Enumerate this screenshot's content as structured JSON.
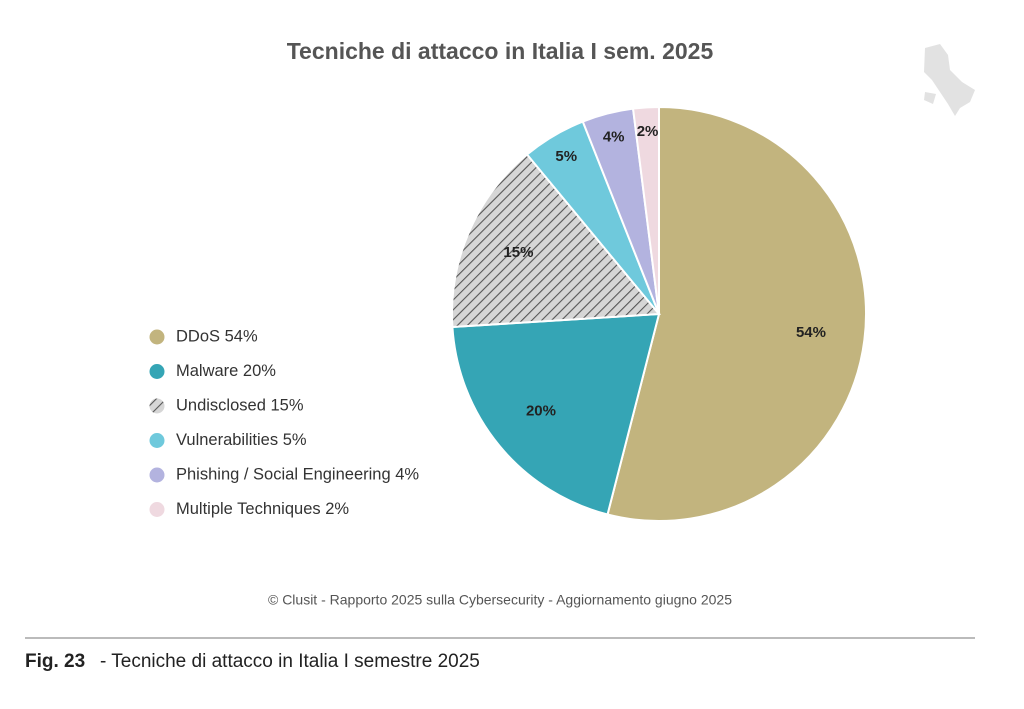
{
  "chart_data": {
    "type": "pie",
    "title": "Tecniche di attacco in Italia I sem. 2025",
    "categories": [
      "DDoS 54%",
      "Malware 20%",
      "Undisclosed 15%",
      "Vulnerabilities 5%",
      "Phishing / Social Engineering 4%",
      "Multiple Techniques 2%"
    ],
    "values": [
      54,
      20,
      15,
      5,
      4,
      2
    ],
    "value_labels": [
      "54%",
      "20%",
      "15%",
      "5%",
      "4%",
      "2%"
    ],
    "colors": [
      "#c2b47e",
      "#35a5b5",
      "#d6d6d6",
      "#6fc9dc",
      "#b3b3df",
      "#efd9e0"
    ],
    "hatched": [
      false,
      false,
      true,
      false,
      false,
      false
    ],
    "legend": "left"
  },
  "source": "© Clusit - Rapporto 2025 sulla Cybersecurity - Aggiornamento giugno 2025",
  "figure": {
    "label": "Fig. 23",
    "caption": "- Tecniche di attacco in Italia I semestre 2025"
  }
}
